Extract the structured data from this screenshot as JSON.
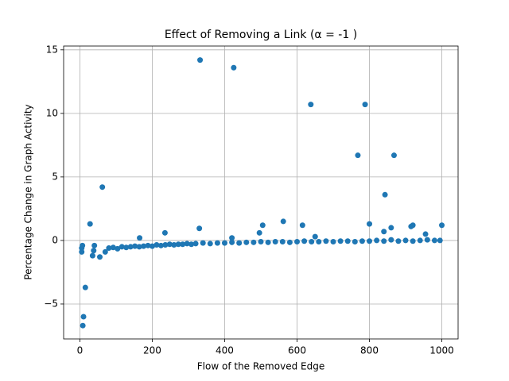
{
  "chart_data": {
    "type": "scatter",
    "title": "Effect of Removing a Link (α = -1 )",
    "x_label": "Flow of the Removed Edge",
    "y_label": "Percentage Change in Graph Activity",
    "color": "#1f77b4",
    "grid": true,
    "xlim": [
      -45,
      1045
    ],
    "ylim": [
      -7.75,
      15.3
    ],
    "xticks": [
      0,
      200,
      400,
      600,
      800,
      1000
    ],
    "yticks": [
      {
        "value": -5,
        "label": "−5"
      },
      0,
      5,
      10,
      15
    ],
    "x": [
      5,
      5,
      7,
      8,
      10,
      15,
      28,
      35,
      38,
      40,
      55,
      62,
      70,
      330,
      332,
      425,
      496,
      505,
      562,
      615,
      638,
      650,
      768,
      788,
      800,
      840,
      843,
      860,
      868,
      915,
      920,
      955,
      1000,
      165,
      235,
      420,
      80,
      92,
      104,
      116,
      128,
      140,
      152,
      164,
      176,
      188,
      200,
      212,
      224,
      236,
      248,
      260,
      272,
      284,
      296,
      308,
      320,
      340,
      360,
      380,
      400,
      420,
      440,
      460,
      480,
      500,
      520,
      540,
      560,
      580,
      600,
      620,
      640,
      660,
      680,
      700,
      720,
      740,
      760,
      780,
      800,
      820,
      840,
      860,
      880,
      900,
      920,
      940,
      960,
      980,
      995
    ],
    "values": [
      -0.9,
      -0.6,
      -0.4,
      -6.7,
      -6.0,
      -3.7,
      1.3,
      -1.2,
      -0.8,
      -0.4,
      -1.3,
      4.2,
      -0.9,
      0.95,
      14.2,
      13.6,
      0.6,
      1.2,
      1.5,
      1.2,
      10.7,
      0.3,
      6.7,
      10.7,
      1.3,
      0.7,
      3.6,
      1.0,
      6.7,
      1.1,
      1.2,
      0.5,
      1.2,
      0.2,
      0.6,
      0.2,
      -0.6,
      -0.55,
      -0.65,
      -0.5,
      -0.55,
      -0.5,
      -0.45,
      -0.5,
      -0.45,
      -0.4,
      -0.45,
      -0.35,
      -0.4,
      -0.35,
      -0.3,
      -0.35,
      -0.3,
      -0.3,
      -0.25,
      -0.3,
      -0.25,
      -0.2,
      -0.25,
      -0.2,
      -0.2,
      -0.15,
      -0.2,
      -0.15,
      -0.15,
      -0.1,
      -0.15,
      -0.1,
      -0.1,
      -0.15,
      -0.1,
      -0.05,
      -0.1,
      -0.1,
      -0.05,
      -0.1,
      -0.05,
      -0.05,
      -0.1,
      -0.05,
      -0.05,
      0,
      -0.05,
      0.05,
      -0.05,
      0,
      -0.05,
      0,
      0.05,
      0,
      0
    ]
  }
}
